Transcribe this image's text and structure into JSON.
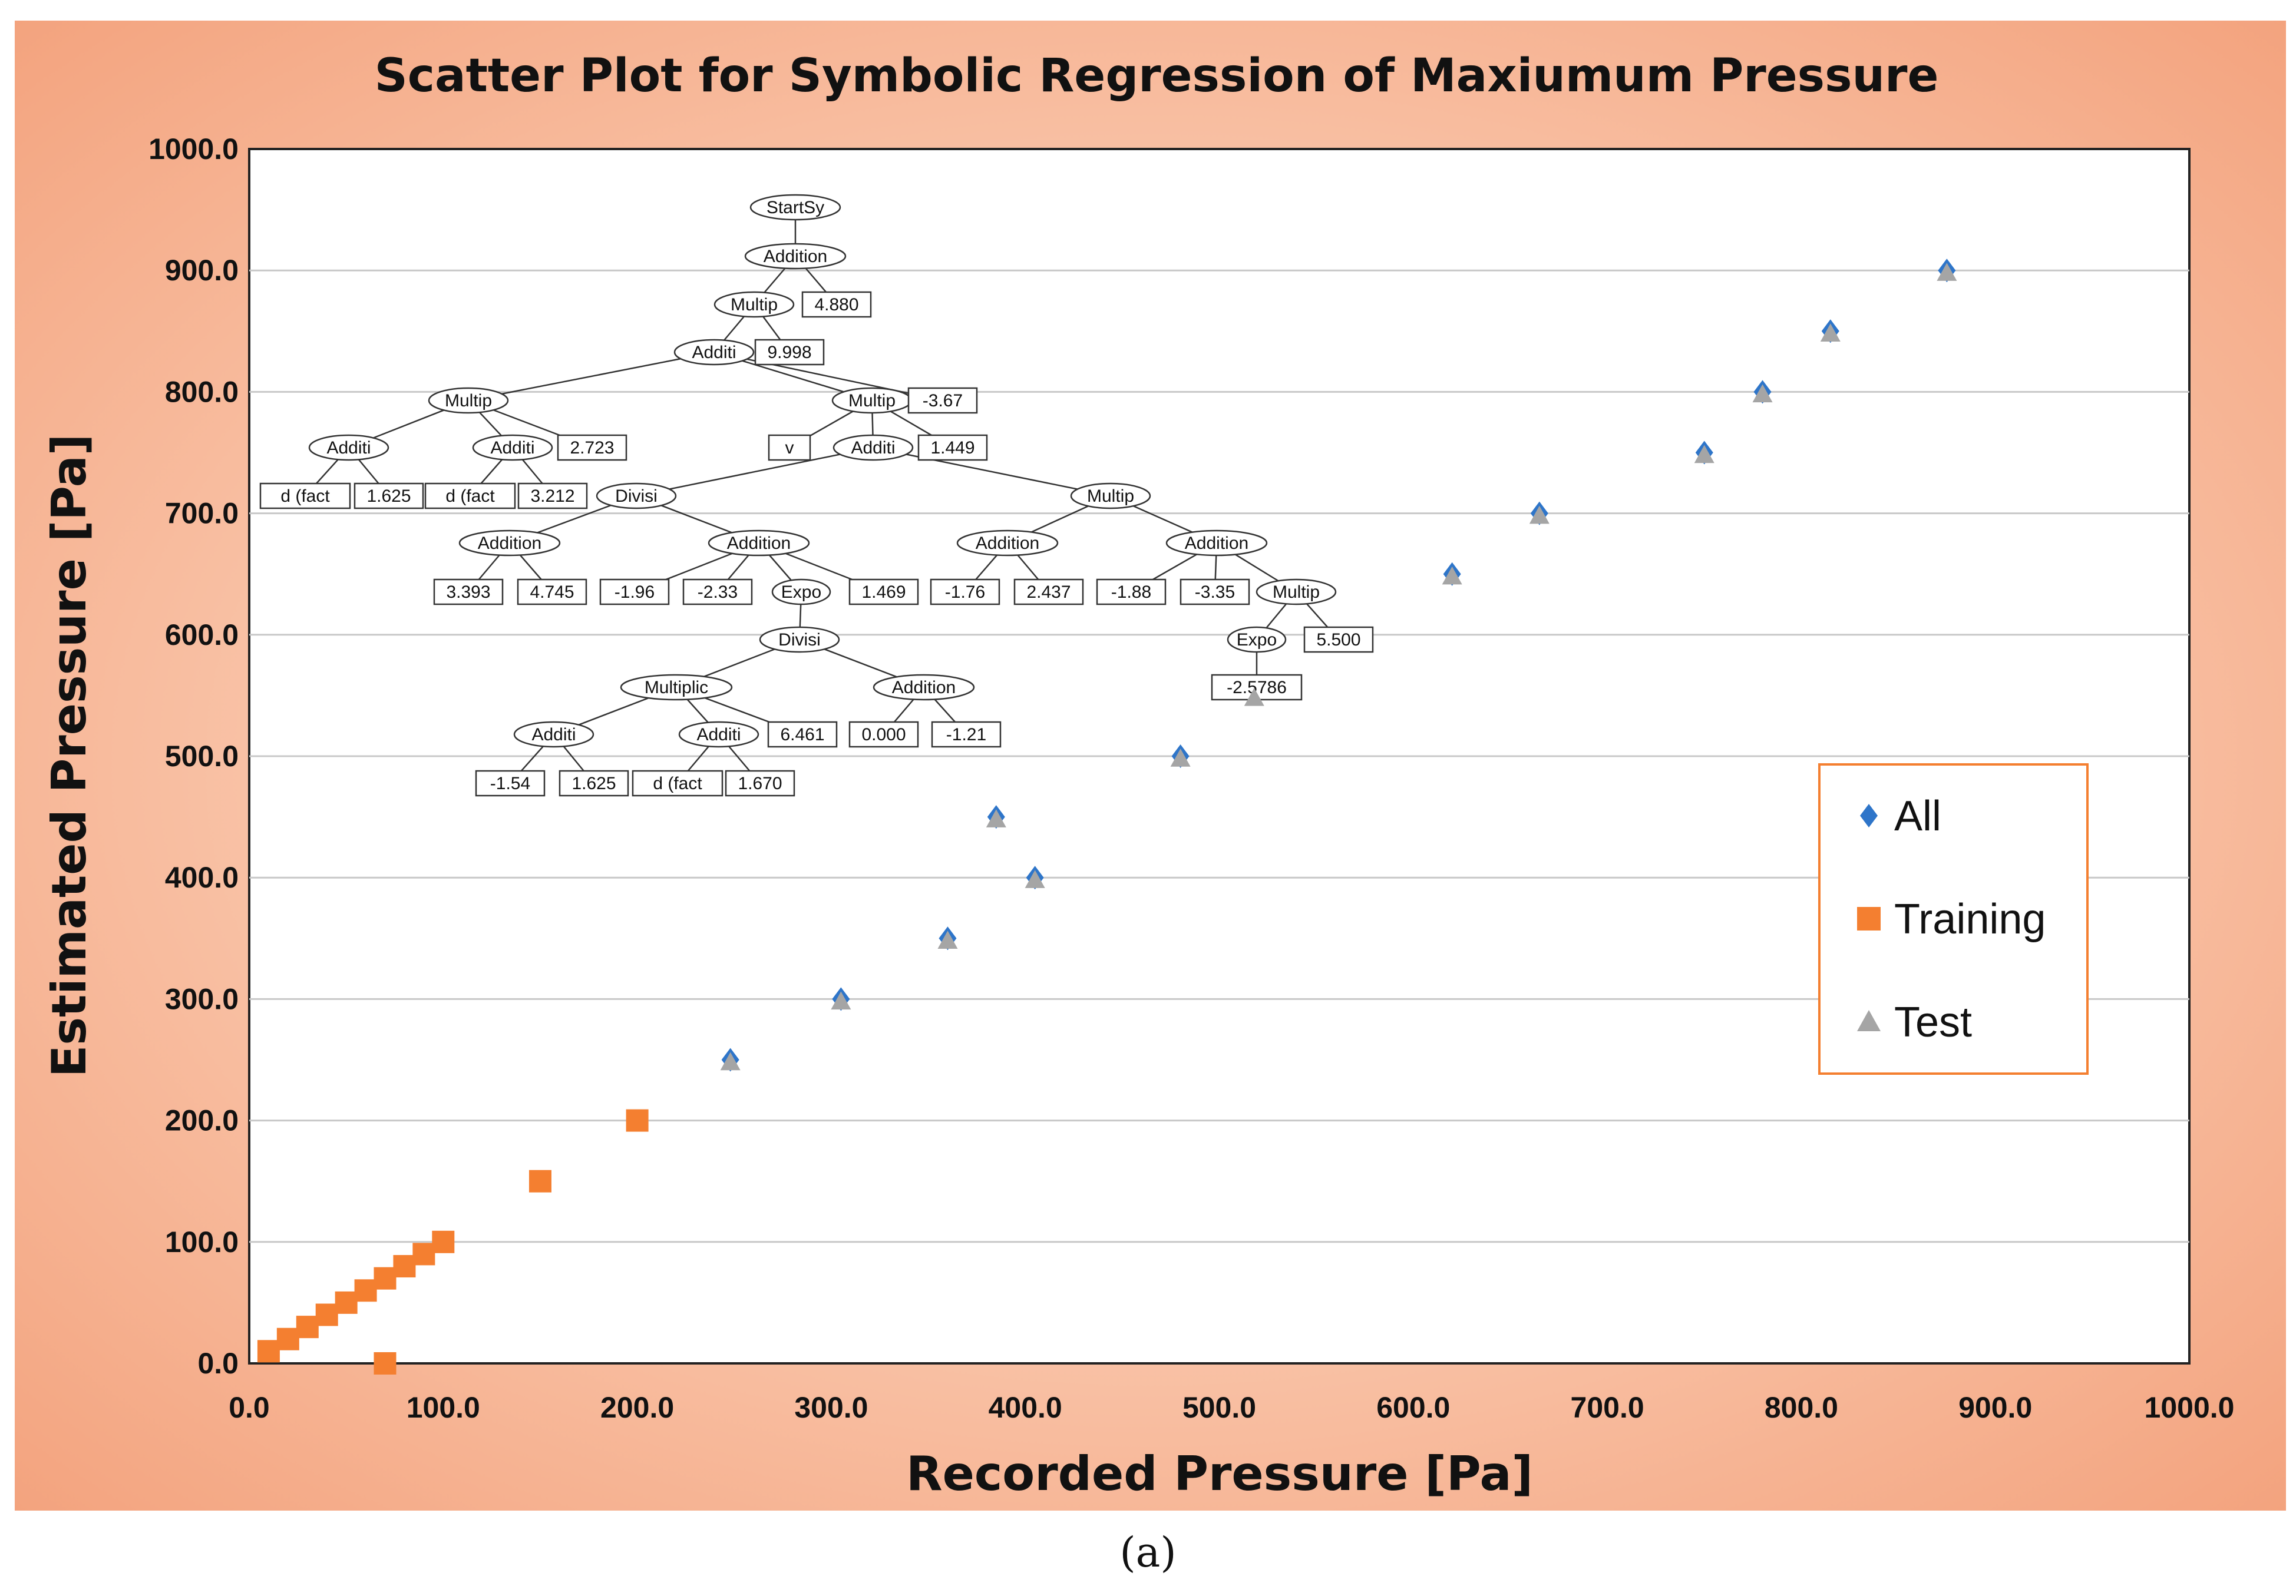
{
  "caption": "(a)",
  "chart_data": {
    "type": "scatter",
    "title": "Scatter Plot for Symbolic Regression of Maxiumum Pressure",
    "xlabel": "Recorded Pressure  [Pa]",
    "ylabel": "Estimated Pressure  [Pa]",
    "xlim": [
      0,
      1000
    ],
    "ylim": [
      0,
      1000
    ],
    "xticks": [
      "0.0",
      "100.0",
      "200.0",
      "300.0",
      "400.0",
      "500.0",
      "600.0",
      "700.0",
      "800.0",
      "900.0",
      "1000.0"
    ],
    "yticks": [
      "0.0",
      "100.0",
      "200.0",
      "300.0",
      "400.0",
      "500.0",
      "600.0",
      "700.0",
      "800.0",
      "900.0",
      "1000.0"
    ],
    "grid": true,
    "legend_position": "right",
    "colors": {
      "all": "#2e75c9",
      "training": "#f47f30",
      "test": "#a5a5a5",
      "plot_bg": "#ffffff",
      "legend_border": "#f47f30"
    },
    "series": [
      {
        "name": "All",
        "marker": "diamond",
        "points": [
          [
            248,
            250
          ],
          [
            305,
            300
          ],
          [
            360,
            350
          ],
          [
            385,
            450
          ],
          [
            405,
            400
          ],
          [
            480,
            500
          ],
          [
            620,
            650
          ],
          [
            665,
            700
          ],
          [
            750,
            750
          ],
          [
            780,
            800
          ],
          [
            815,
            850
          ],
          [
            875,
            900
          ]
        ]
      },
      {
        "name": "Training",
        "marker": "square",
        "points": [
          [
            10,
            10
          ],
          [
            20,
            20
          ],
          [
            30,
            30
          ],
          [
            40,
            40
          ],
          [
            50,
            50
          ],
          [
            60,
            60
          ],
          [
            70,
            0
          ],
          [
            70,
            70
          ],
          [
            80,
            80
          ],
          [
            90,
            90
          ],
          [
            100,
            100
          ],
          [
            150,
            150
          ],
          [
            200,
            200
          ]
        ]
      },
      {
        "name": "Test",
        "marker": "triangle",
        "points": [
          [
            248,
            248
          ],
          [
            305,
            298
          ],
          [
            360,
            348
          ],
          [
            385,
            448
          ],
          [
            405,
            398
          ],
          [
            480,
            498
          ],
          [
            518,
            548
          ],
          [
            620,
            648
          ],
          [
            665,
            698
          ],
          [
            750,
            748
          ],
          [
            780,
            798
          ],
          [
            815,
            848
          ],
          [
            875,
            898
          ]
        ]
      }
    ]
  },
  "tree": {
    "nodes": [
      {
        "label": "StartSy",
        "shape": "ellipse"
      },
      {
        "label": "Addition",
        "shape": "ellipse"
      },
      {
        "label": "Multip",
        "shape": "ellipse"
      },
      {
        "label": "4.880",
        "shape": "box"
      },
      {
        "label": "Additi",
        "shape": "ellipse"
      },
      {
        "label": "9.998",
        "shape": "box"
      },
      {
        "label": "Multip",
        "shape": "ellipse"
      },
      {
        "label": "Multip",
        "shape": "ellipse"
      },
      {
        "label": "-3.67",
        "shape": "box"
      },
      {
        "label": "Additi",
        "shape": "ellipse"
      },
      {
        "label": "Additi",
        "shape": "ellipse"
      },
      {
        "label": "2.723",
        "shape": "box"
      },
      {
        "label": "v",
        "shape": "box"
      },
      {
        "label": "Additi",
        "shape": "ellipse"
      },
      {
        "label": "1.449",
        "shape": "box"
      },
      {
        "label": "d (fact",
        "shape": "box"
      },
      {
        "label": "1.625",
        "shape": "box"
      },
      {
        "label": "d (fact",
        "shape": "box"
      },
      {
        "label": "3.212",
        "shape": "box"
      },
      {
        "label": "Divisi",
        "shape": "ellipse"
      },
      {
        "label": "Multip",
        "shape": "ellipse"
      },
      {
        "label": "Addition",
        "shape": "ellipse"
      },
      {
        "label": "Addition",
        "shape": "ellipse"
      },
      {
        "label": "Addition",
        "shape": "ellipse"
      },
      {
        "label": "Addition",
        "shape": "ellipse"
      },
      {
        "label": "3.393",
        "shape": "box"
      },
      {
        "label": "4.745",
        "shape": "box"
      },
      {
        "label": "-1.96",
        "shape": "box"
      },
      {
        "label": "-2.33",
        "shape": "box"
      },
      {
        "label": "Expo",
        "shape": "ellipse"
      },
      {
        "label": "1.469",
        "shape": "box"
      },
      {
        "label": "-1.76",
        "shape": "box"
      },
      {
        "label": "2.437",
        "shape": "box"
      },
      {
        "label": "-1.88",
        "shape": "box"
      },
      {
        "label": "-3.35",
        "shape": "box"
      },
      {
        "label": "Multip",
        "shape": "ellipse"
      },
      {
        "label": "Divisi",
        "shape": "ellipse"
      },
      {
        "label": "Expo",
        "shape": "ellipse"
      },
      {
        "label": "5.500",
        "shape": "box"
      },
      {
        "label": "Multiplic",
        "shape": "ellipse"
      },
      {
        "label": "Addition",
        "shape": "ellipse"
      },
      {
        "label": "-2.5786",
        "shape": "box"
      },
      {
        "label": "Additi",
        "shape": "ellipse"
      },
      {
        "label": "Additi",
        "shape": "ellipse"
      },
      {
        "label": "6.461",
        "shape": "box"
      },
      {
        "label": "0.000",
        "shape": "box"
      },
      {
        "label": "-1.21",
        "shape": "box"
      },
      {
        "label": "-1.54",
        "shape": "box"
      },
      {
        "label": "1.625",
        "shape": "box"
      },
      {
        "label": "d (fact",
        "shape": "box"
      },
      {
        "label": "1.670",
        "shape": "box"
      }
    ]
  }
}
